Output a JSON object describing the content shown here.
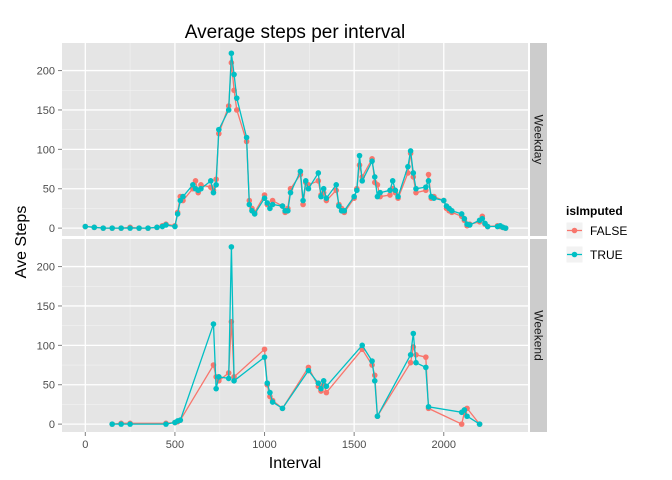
{
  "chart_data": {
    "type": "line",
    "title": "Average steps per interval",
    "xlabel": "Interval",
    "ylabel": "Ave Steps",
    "xlim": [
      -130,
      2470
    ],
    "ylim": [
      -10,
      235
    ],
    "x_ticks": [
      0,
      500,
      1000,
      1500,
      2000
    ],
    "y_ticks": [
      0,
      50,
      100,
      150,
      200
    ],
    "grid": true,
    "markers": true,
    "legend": {
      "title": "isImputed",
      "position": "right",
      "entries": [
        {
          "label": "FALSE",
          "color": "#F8766D"
        },
        {
          "label": "TRUE",
          "color": "#00BFC4"
        }
      ]
    },
    "facets": [
      {
        "label": "Weekday",
        "series": [
          {
            "name": "FALSE",
            "color": "#F8766D",
            "x": [
              0,
              50,
              100,
              150,
              200,
              250,
              300,
              350,
              400,
              430,
              450,
              500,
              515,
              530,
              545,
              600,
              615,
              630,
              645,
              700,
              715,
              730,
              745,
              800,
              815,
              830,
              845,
              900,
              915,
              930,
              945,
              1000,
              1015,
              1030,
              1045,
              1100,
              1115,
              1130,
              1145,
              1200,
              1215,
              1230,
              1245,
              1300,
              1315,
              1330,
              1345,
              1400,
              1415,
              1430,
              1445,
              1500,
              1515,
              1530,
              1545,
              1600,
              1615,
              1630,
              1645,
              1700,
              1715,
              1730,
              1745,
              1800,
              1815,
              1830,
              1845,
              1900,
              1915,
              1930,
              1945,
              2000,
              2015,
              2030,
              2045,
              2100,
              2115,
              2130,
              2145,
              2200,
              2215,
              2230,
              2245,
              2300,
              2315,
              2330,
              2345
            ],
            "y": [
              2,
              1,
              0,
              0,
              0,
              1,
              0,
              0,
              1,
              3,
              5,
              3,
              20,
              40,
              35,
              50,
              60,
              45,
              55,
              52,
              48,
              62,
              120,
              155,
              210,
              175,
              150,
              110,
              35,
              25,
              20,
              42,
              30,
              28,
              35,
              28,
              20,
              25,
              50,
              68,
              30,
              58,
              55,
              60,
              42,
              45,
              35,
              48,
              30,
              25,
              20,
              38,
              50,
              80,
              65,
              88,
              58,
              55,
              40,
              42,
              50,
              45,
              38,
              70,
              95,
              65,
              45,
              48,
              68,
              38,
              40,
              35,
              25,
              22,
              20,
              15,
              10,
              3,
              5,
              8,
              15,
              5,
              2,
              3,
              2,
              1,
              0
            ]
          },
          {
            "name": "TRUE",
            "color": "#00BFC4",
            "x": [
              0,
              50,
              100,
              150,
              200,
              250,
              300,
              350,
              400,
              430,
              450,
              500,
              515,
              530,
              545,
              600,
              615,
              630,
              645,
              700,
              715,
              730,
              745,
              800,
              815,
              830,
              845,
              900,
              915,
              930,
              945,
              1000,
              1015,
              1030,
              1045,
              1100,
              1115,
              1130,
              1145,
              1200,
              1215,
              1230,
              1245,
              1300,
              1315,
              1330,
              1345,
              1400,
              1415,
              1430,
              1445,
              1500,
              1515,
              1530,
              1545,
              1600,
              1615,
              1630,
              1645,
              1700,
              1715,
              1730,
              1745,
              1800,
              1815,
              1830,
              1845,
              1900,
              1915,
              1930,
              1945,
              2000,
              2015,
              2030,
              2045,
              2100,
              2115,
              2130,
              2145,
              2200,
              2215,
              2230,
              2245,
              2300,
              2315,
              2330,
              2345
            ],
            "y": [
              2,
              1,
              0,
              0,
              0,
              0,
              0,
              0,
              1,
              2,
              4,
              2,
              18,
              35,
              40,
              55,
              50,
              48,
              50,
              60,
              45,
              55,
              125,
              150,
              222,
              195,
              165,
              115,
              30,
              22,
              18,
              38,
              32,
              25,
              30,
              28,
              22,
              22,
              45,
              72,
              35,
              60,
              50,
              70,
              40,
              50,
              38,
              55,
              28,
              22,
              22,
              40,
              48,
              92,
              60,
              85,
              65,
              40,
              45,
              48,
              60,
              48,
              40,
              78,
              98,
              70,
              50,
              52,
              60,
              40,
              38,
              35,
              28,
              25,
              22,
              18,
              12,
              5,
              4,
              10,
              12,
              6,
              2,
              2,
              3,
              1,
              0
            ]
          }
        ]
      },
      {
        "label": "Weekend",
        "series": [
          {
            "name": "FALSE",
            "color": "#F8766D",
            "x": [
              150,
              200,
              250,
              450,
              500,
              515,
              530,
              715,
              730,
              745,
              800,
              815,
              830,
              1000,
              1015,
              1030,
              1045,
              1100,
              1245,
              1300,
              1315,
              1330,
              1345,
              1545,
              1600,
              1615,
              1630,
              1815,
              1830,
              1845,
              1900,
              1915,
              2100,
              2115,
              2130,
              2200
            ],
            "y": [
              0,
              1,
              1,
              1,
              2,
              3,
              5,
              75,
              60,
              55,
              65,
              130,
              60,
              95,
              50,
              35,
              30,
              20,
              72,
              48,
              42,
              50,
              40,
              95,
              75,
              62,
              10,
              78,
              98,
              88,
              85,
              20,
              0,
              15,
              20,
              0
            ]
          },
          {
            "name": "TRUE",
            "color": "#00BFC4",
            "x": [
              150,
              200,
              250,
              450,
              500,
              515,
              530,
              715,
              730,
              745,
              800,
              815,
              830,
              1000,
              1015,
              1030,
              1045,
              1100,
              1245,
              1300,
              1315,
              1330,
              1345,
              1545,
              1600,
              1615,
              1630,
              1815,
              1830,
              1845,
              1900,
              1915,
              2100,
              2115,
              2130,
              2200
            ],
            "y": [
              0,
              0,
              0,
              0,
              2,
              4,
              5,
              127,
              45,
              60,
              58,
              225,
              55,
              85,
              52,
              40,
              28,
              20,
              68,
              52,
              45,
              55,
              48,
              100,
              80,
              55,
              10,
              88,
              115,
              78,
              72,
              22,
              15,
              18,
              10,
              0
            ]
          }
        ]
      }
    ]
  },
  "legend_title": "isImputed",
  "facet_labels": [
    "Weekday",
    "Weekend"
  ]
}
